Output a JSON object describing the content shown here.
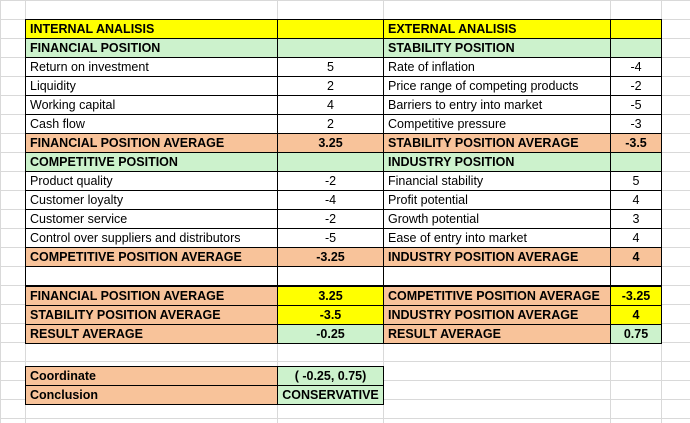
{
  "internal": {
    "header": "INTERNAL ANALISIS",
    "financial": {
      "title": "FINANCIAL POSITION",
      "rows": [
        {
          "label": "Return on investment",
          "value": "5"
        },
        {
          "label": "Liquidity",
          "value": "2"
        },
        {
          "label": "Working capital",
          "value": "4"
        },
        {
          "label": "Cash flow",
          "value": "2"
        }
      ],
      "avg_label": "FINANCIAL POSITION AVERAGE",
      "avg_value": "3.25"
    },
    "competitive": {
      "title": "COMPETITIVE POSITION",
      "rows": [
        {
          "label": "Product quality",
          "value": "-2"
        },
        {
          "label": "Customer loyalty",
          "value": "-4"
        },
        {
          "label": "Customer service",
          "value": "-2"
        },
        {
          "label": "Control over suppliers and distributors",
          "value": "-5"
        }
      ],
      "avg_label": "COMPETITIVE POSITION AVERAGE",
      "avg_value": "-3.25"
    }
  },
  "external": {
    "header": "EXTERNAL ANALISIS",
    "stability": {
      "title": "STABILITY POSITION",
      "rows": [
        {
          "label": "Rate of inflation",
          "value": "-4"
        },
        {
          "label": "Price range of competing products",
          "value": "-2"
        },
        {
          "label": "Barriers to entry into market",
          "value": "-5"
        },
        {
          "label": "Competitive pressure",
          "value": "-3"
        }
      ],
      "avg_label": "STABILITY POSITION AVERAGE",
      "avg_value": "-3.5"
    },
    "industry": {
      "title": "INDUSTRY POSITION",
      "rows": [
        {
          "label": "Financial stability",
          "value": "5"
        },
        {
          "label": "Profit potential",
          "value": "4"
        },
        {
          "label": "Growth potential",
          "value": "3"
        },
        {
          "label": "Ease of entry into market",
          "value": "4"
        }
      ],
      "avg_label": "INDUSTRY POSITION AVERAGE",
      "avg_value": "4"
    }
  },
  "summary": {
    "left": [
      {
        "label": "FINANCIAL POSITION AVERAGE",
        "value": "3.25"
      },
      {
        "label": "STABILITY POSITION AVERAGE",
        "value": "-3.5"
      },
      {
        "label": "RESULT AVERAGE",
        "value": "-0.25"
      }
    ],
    "right": [
      {
        "label": "COMPETITIVE POSITION AVERAGE",
        "value": "-3.25"
      },
      {
        "label": "INDUSTRY POSITION AVERAGE",
        "value": "4"
      },
      {
        "label": "RESULT AVERAGE",
        "value": "0.75"
      }
    ]
  },
  "result": {
    "coordinate_label": "Coordinate",
    "coordinate_value": "( -0.25, 0.75)",
    "conclusion_label": "Conclusion",
    "conclusion_value": "CONSERVATIVE"
  },
  "colors": {
    "header": "#ffff00",
    "section": "#ccf2cc",
    "average": "#f8c39a",
    "grid": "#d9d9d9"
  }
}
